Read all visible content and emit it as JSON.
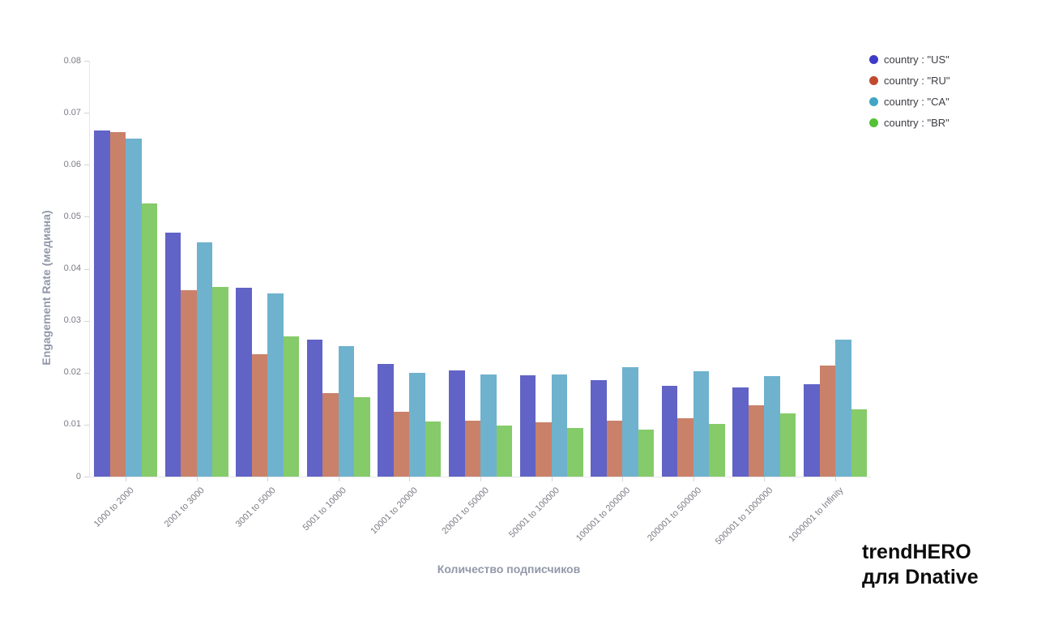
{
  "chart_data": {
    "type": "bar",
    "title": "",
    "xlabel": "Количество подписчиков",
    "ylabel": "Engagement Rate (медиана)",
    "ylim": [
      0,
      0.08
    ],
    "ytick_labels": [
      "0",
      "0.01",
      "0.02",
      "0.03",
      "0.04",
      "0.05",
      "0.06",
      "0.07",
      "0.08"
    ],
    "grid": false,
    "legend_position": "top-right",
    "categories": [
      "1000 to 2000",
      "2001 to 3000",
      "3001 to 5000",
      "5001 to 10000",
      "10001 to 20000",
      "20001 to 50000",
      "50001 to 100000",
      "100001 to 200000",
      "200001 to 500000",
      "500001 to 1000000",
      "1000001 to Infinity"
    ],
    "series": [
      {
        "name": "country : \"US\"",
        "bar_color": "#6163C6",
        "legend_color": "#3E3BC9",
        "values": [
          0.0666,
          0.047,
          0.0363,
          0.0263,
          0.0217,
          0.0204,
          0.0195,
          0.0186,
          0.0174,
          0.0172,
          0.0178
        ]
      },
      {
        "name": "country : \"RU\"",
        "bar_color": "#C9816A",
        "legend_color": "#C04A2F",
        "values": [
          0.0663,
          0.0359,
          0.0236,
          0.0161,
          0.0124,
          0.0107,
          0.0104,
          0.0108,
          0.0113,
          0.0137,
          0.0213
        ]
      },
      {
        "name": "country : \"CA\"",
        "bar_color": "#6FB2CE",
        "legend_color": "#41A5C6",
        "values": [
          0.065,
          0.045,
          0.0353,
          0.0251,
          0.0199,
          0.0197,
          0.0196,
          0.021,
          0.0203,
          0.0193,
          0.0264
        ]
      },
      {
        "name": "country : \"BR\"",
        "bar_color": "#85CB69",
        "legend_color": "#55C136",
        "values": [
          0.0525,
          0.0365,
          0.027,
          0.0153,
          0.0106,
          0.0098,
          0.0093,
          0.0091,
          0.0101,
          0.0122,
          0.0129
        ]
      }
    ]
  },
  "watermark": {
    "line1": "trendHERO",
    "line2": "для Dnative"
  }
}
